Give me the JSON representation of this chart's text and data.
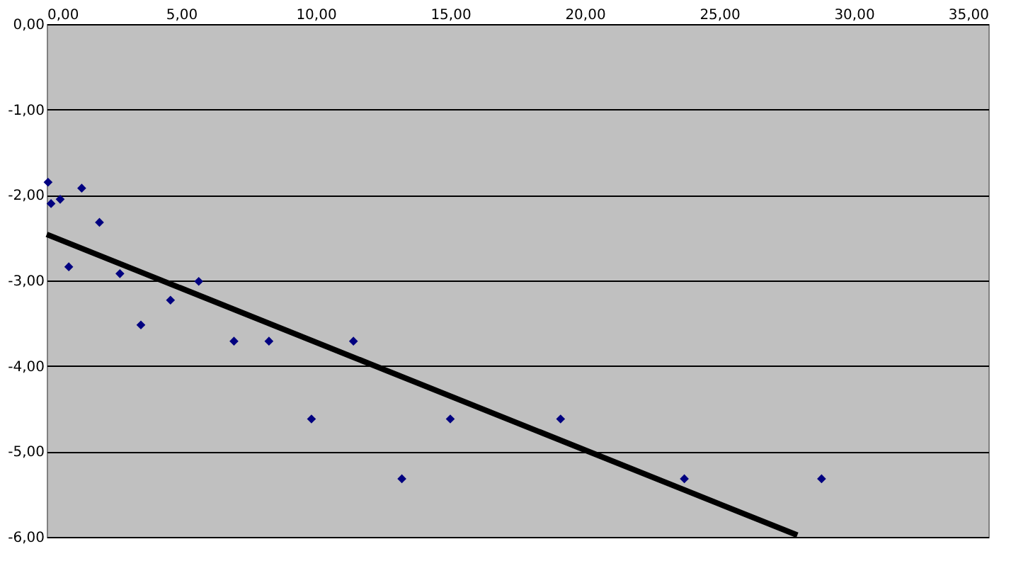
{
  "chart_data": {
    "type": "scatter",
    "marker": "diamond",
    "grid": "y",
    "xlim": [
      0,
      35
    ],
    "ylim": [
      -6,
      0
    ],
    "xticks": [
      {
        "value": 0,
        "label": "0,00"
      },
      {
        "value": 5,
        "label": "5,00"
      },
      {
        "value": 10,
        "label": "10,00"
      },
      {
        "value": 15,
        "label": "15,00"
      },
      {
        "value": 20,
        "label": "20,00"
      },
      {
        "value": 25,
        "label": "25,00"
      },
      {
        "value": 30,
        "label": "30,00"
      },
      {
        "value": 35,
        "label": "35,00"
      }
    ],
    "yticks": [
      {
        "value": 0,
        "label": "0,00"
      },
      {
        "value": -1,
        "label": "-1,00"
      },
      {
        "value": -2,
        "label": "-2,00"
      },
      {
        "value": -3,
        "label": "-3,00"
      },
      {
        "value": -4,
        "label": "-4,00"
      },
      {
        "value": -5,
        "label": "-5,00"
      },
      {
        "value": -6,
        "label": "-6,00"
      }
    ],
    "series": [
      {
        "color": "#000080",
        "x": [
          0.05,
          0.16,
          0.5,
          0.82,
          1.3,
          1.96,
          2.72,
          3.5,
          4.6,
          5.65,
          6.96,
          8.26,
          9.84,
          11.4,
          13.2,
          15.0,
          19.1,
          23.7,
          28.8
        ],
        "values": [
          -1.85,
          -2.1,
          -2.05,
          -2.84,
          -1.92,
          -2.32,
          -2.92,
          -3.52,
          -3.23,
          -3.01,
          -3.71,
          -3.71,
          -4.62,
          -3.71,
          -5.32,
          -4.62,
          -4.62,
          -5.32,
          -5.32
        ]
      },
      {
        "type": "line",
        "marker": "none",
        "color": "#000000",
        "x": [
          0,
          27.9
        ],
        "values": [
          -2.46,
          -5.98
        ]
      }
    ]
  }
}
